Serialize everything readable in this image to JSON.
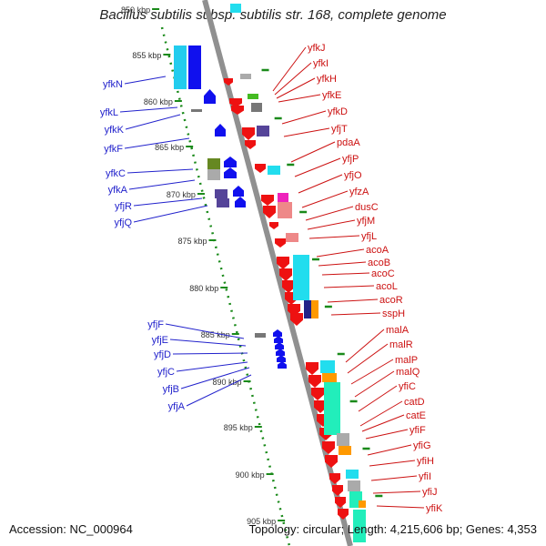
{
  "title": "Bacillus subtilis subsp. subtilis str. 168, complete genome",
  "footer": {
    "accession": "Accession: NC_000964",
    "topology": "Topology: circular; Length: 4,215,606 bp; Genes: 4,353"
  },
  "colors": {
    "backbone": "#909090",
    "ruler_dots": "#1a8a1a",
    "left_label": "#2222cc",
    "right_label": "#cc1111",
    "reverse_gene": "#1010ee",
    "forward_gene": "#ee1111",
    "cyan": "#22ddee",
    "teal": "#22eebb",
    "orange": "#ff9900",
    "gray": "#aaaaaa",
    "purple": "#554499",
    "magenta": "#ee22bb",
    "olive": "#668822",
    "pink": "#ee8888",
    "green": "#44bb22"
  },
  "ruler_ticks": [
    "850 kbp",
    "855 kbp",
    "860 kbp",
    "865 kbp",
    "870 kbp",
    "875 kbp",
    "880 kbp",
    "885 kbp",
    "890 kbp",
    "895 kbp",
    "900 kbp",
    "905 kbp"
  ],
  "left_genes": [
    "yfkN",
    "yfkL",
    "yfkK",
    "yfkF",
    "yfkC",
    "yfkA",
    "yfjR",
    "yfjQ",
    "yfjF",
    "yfjE",
    "yfjD",
    "yfjC",
    "yfjB",
    "yfjA"
  ],
  "right_genes": [
    "yfkJ",
    "yfkI",
    "yfkH",
    "yfkE",
    "yfkD",
    "yfjT",
    "pdaA",
    "yfjP",
    "yfjO",
    "yfzA",
    "dusC",
    "yfjM",
    "yfjL",
    "acoA",
    "acoB",
    "acoC",
    "acoL",
    "acoR",
    "sspH",
    "malA",
    "malR",
    "malP",
    "malQ",
    "yfiC",
    "catD",
    "catE",
    "yfiF",
    "yfiG",
    "yfiH",
    "yfiI",
    "yfiJ",
    "yfiK"
  ]
}
